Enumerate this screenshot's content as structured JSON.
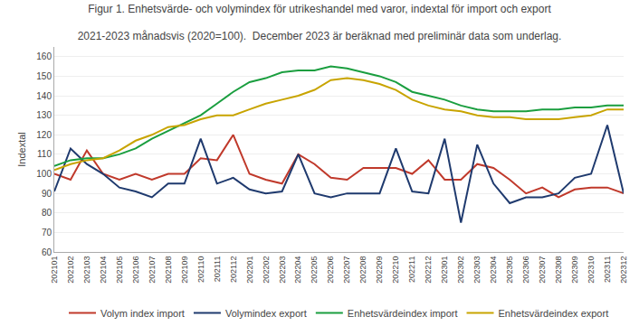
{
  "chart_data": {
    "type": "line",
    "title": "Figur 1. Enhetsvärde- och volymindex för utrikeshandel med varor, indextal för import och export",
    "subtitle": "2021-2023 månadsvis (2020=100).  December 2023 är beräknad med preliminär data som underlag.",
    "y_label": "Indextal",
    "categories": [
      "202101",
      "202102",
      "202103",
      "202104",
      "202105",
      "202106",
      "202107",
      "202108",
      "202109",
      "202110",
      "202111",
      "202112",
      "202201",
      "202202",
      "202203",
      "202204",
      "202205",
      "202206",
      "202207",
      "202208",
      "202209",
      "202210",
      "202211",
      "202212",
      "202301",
      "202302",
      "202303",
      "202304",
      "202305",
      "202306",
      "202307",
      "202308",
      "202309",
      "202310",
      "202311",
      "202312"
    ],
    "series": [
      {
        "name": "Volym index import",
        "color": "#c0392b",
        "values": [
          100,
          97,
          112,
          100,
          97,
          100,
          97,
          100,
          100,
          108,
          107,
          120,
          100,
          97,
          95,
          110,
          105,
          98,
          97,
          103,
          103,
          103,
          100,
          107,
          97,
          97,
          105,
          103,
          97,
          90,
          93,
          88,
          92,
          93,
          93,
          90
        ]
      },
      {
        "name": "Volymindex export",
        "color": "#1f3a6e",
        "values": [
          91,
          113,
          105,
          100,
          93,
          91,
          88,
          95,
          95,
          118,
          95,
          98,
          92,
          90,
          91,
          110,
          90,
          88,
          90,
          90,
          90,
          113,
          91,
          90,
          118,
          75,
          115,
          95,
          85,
          88,
          88,
          90,
          98,
          100,
          125,
          90
        ]
      },
      {
        "name": "Enhetsvärdeindex import",
        "color": "#1a9e3f",
        "values": [
          104,
          107,
          108,
          108,
          110,
          113,
          118,
          122,
          126,
          130,
          136,
          142,
          147,
          149,
          152,
          153,
          153,
          155,
          154,
          152,
          150,
          147,
          142,
          140,
          138,
          135,
          133,
          132,
          132,
          132,
          133,
          133,
          134,
          134,
          135,
          135
        ]
      },
      {
        "name": "Enhetsvärdeindex export",
        "color": "#c8a400",
        "values": [
          102,
          105,
          107,
          108,
          112,
          117,
          120,
          124,
          125,
          128,
          130,
          130,
          133,
          136,
          138,
          140,
          143,
          148,
          149,
          148,
          146,
          143,
          138,
          135,
          133,
          132,
          130,
          129,
          129,
          128,
          128,
          128,
          129,
          130,
          133,
          133
        ]
      }
    ],
    "ylim": [
      60,
      165
    ],
    "yticks": [
      60,
      70,
      80,
      90,
      100,
      110,
      120,
      130,
      140,
      150,
      160
    ],
    "grid": true,
    "legend": "bottom"
  }
}
